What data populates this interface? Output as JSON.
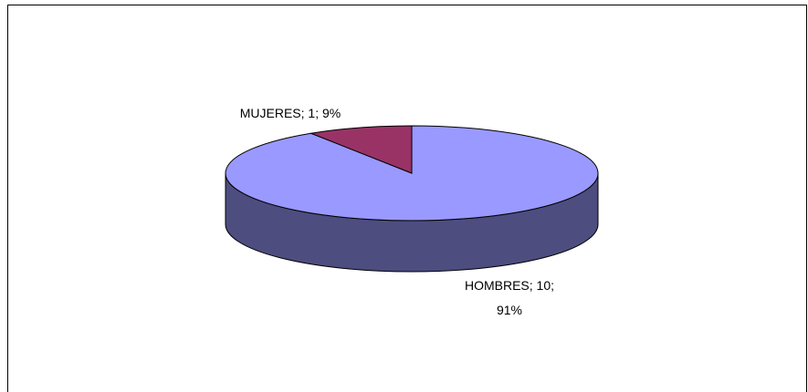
{
  "chart_data": {
    "type": "pie3d",
    "categories": [
      "HOMBRES",
      "MUJERES"
    ],
    "values": [
      10,
      1
    ],
    "value_labels": [
      "HOMBRES; 10; 91%",
      "MUJERES; 1; 9%"
    ],
    "colors": [
      "#9999ff",
      "#993366"
    ]
  }
}
